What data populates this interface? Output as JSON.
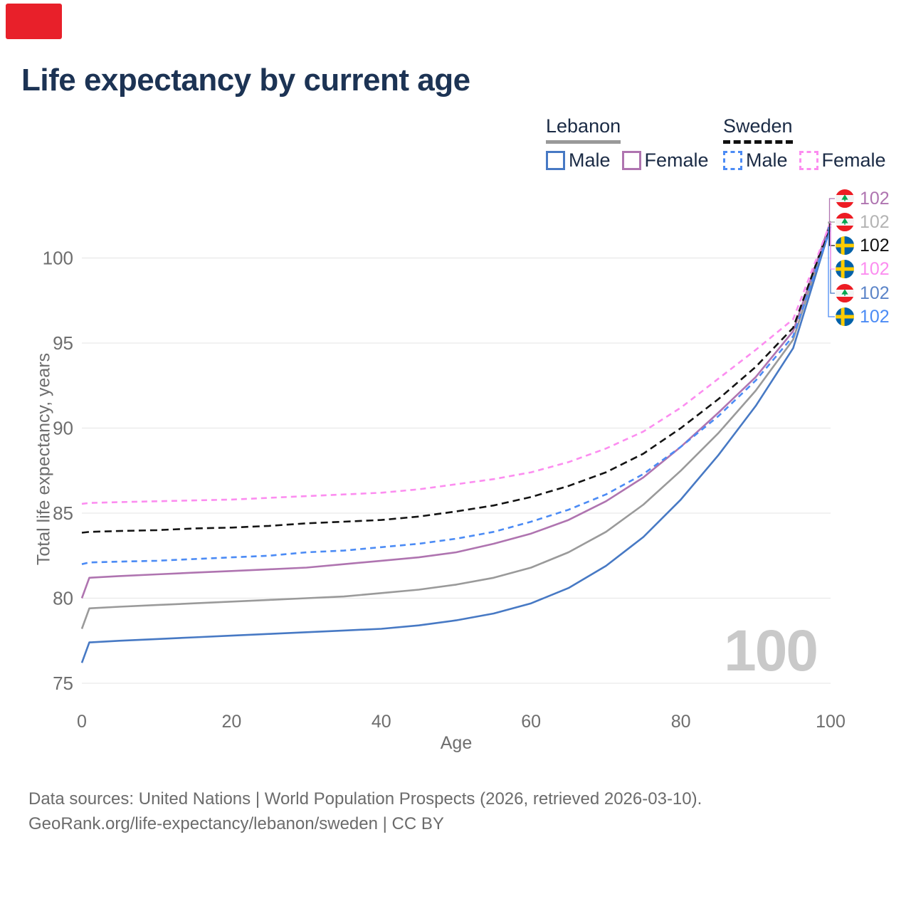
{
  "title": "Life expectancy by current age",
  "age_indicator": "100",
  "footer": {
    "line1": "Data sources: United Nations | World Population Prospects (2026, retrieved 2026-03-10).",
    "line2": "GeoRank.org/life-expectancy/lebanon/sweden | CC BY"
  },
  "colors": {
    "corner_marker": "#e8202a",
    "title_navy": "#1c3354",
    "grid": "#e9e9e9",
    "tick_gray": "#6e6e6e",
    "watermark_gray": "#c9c9c9"
  },
  "legend": {
    "groups": [
      {
        "country": "Lebanon",
        "line_style": "solid",
        "underline_color": "#999999",
        "items": [
          {
            "label": "Male",
            "color": "#4779c4"
          },
          {
            "label": "Female",
            "color": "#af74b0"
          }
        ]
      },
      {
        "country": "Sweden",
        "line_style": "dashed",
        "underline_color": "#111111",
        "items": [
          {
            "label": "Male",
            "color": "#4b8bf5"
          },
          {
            "label": "Female",
            "color": "#fc8df0"
          }
        ]
      }
    ]
  },
  "end_labels": [
    {
      "country": "Lebanon",
      "value": "102",
      "color": "#af74b0"
    },
    {
      "country": "Lebanon",
      "value": "102",
      "color": "#b3b3b3"
    },
    {
      "country": "Sweden",
      "value": "102",
      "color": "#111111"
    },
    {
      "country": "Sweden",
      "value": "102",
      "color": "#fc8df0"
    },
    {
      "country": "Lebanon",
      "value": "102",
      "color": "#5b84c8"
    },
    {
      "country": "Sweden",
      "value": "102",
      "color": "#4b8bf5"
    }
  ],
  "chart_data": {
    "type": "line",
    "title": "Life expectancy by current age",
    "xlabel": "Age",
    "ylabel": "Total life expectancy, years",
    "xlim": [
      0,
      100
    ],
    "ylim": [
      75,
      102.5
    ],
    "x_ticks": [
      0,
      20,
      40,
      60,
      80,
      100
    ],
    "y_ticks": [
      75,
      80,
      85,
      90,
      95,
      100
    ],
    "grid": "horizontal",
    "legend_position": "top-right",
    "x": [
      0,
      1,
      5,
      10,
      15,
      20,
      25,
      30,
      35,
      40,
      45,
      50,
      55,
      60,
      65,
      70,
      75,
      80,
      85,
      90,
      95,
      100
    ],
    "series": [
      {
        "name": "Lebanon Both sexes",
        "country": "Lebanon",
        "sex": "Both",
        "style": "solid",
        "color": "#9a9a9a",
        "dash": null,
        "label_row": 1,
        "end_label": "102",
        "values": [
          78.2,
          79.4,
          79.5,
          79.6,
          79.7,
          79.8,
          79.9,
          80.0,
          80.1,
          80.3,
          80.5,
          80.8,
          81.2,
          81.8,
          82.7,
          83.9,
          85.5,
          87.5,
          89.7,
          92.2,
          95.2,
          102.05
        ]
      },
      {
        "name": "Lebanon Female",
        "country": "Lebanon",
        "sex": "Female",
        "style": "solid",
        "color": "#af74b0",
        "dash": null,
        "label_row": 0,
        "end_label": "102",
        "values": [
          80.0,
          81.2,
          81.3,
          81.4,
          81.5,
          81.6,
          81.7,
          81.8,
          82.0,
          82.2,
          82.4,
          82.7,
          83.2,
          83.8,
          84.6,
          85.7,
          87.1,
          88.9,
          90.9,
          93.0,
          95.7,
          102.15
        ]
      },
      {
        "name": "Lebanon Male",
        "country": "Lebanon",
        "sex": "Male",
        "style": "solid",
        "color": "#4779c4",
        "dash": null,
        "label_row": 4,
        "end_label": "102",
        "values": [
          76.2,
          77.4,
          77.5,
          77.6,
          77.7,
          77.8,
          77.9,
          78.0,
          78.1,
          78.2,
          78.4,
          78.7,
          79.1,
          79.7,
          80.6,
          81.9,
          83.6,
          85.8,
          88.4,
          91.3,
          94.7,
          101.85
        ]
      },
      {
        "name": "Sweden Male",
        "country": "Sweden",
        "sex": "Male",
        "style": "dashed",
        "color": "#4b8bf5",
        "dash": "8 6",
        "label_row": 5,
        "end_label": "102",
        "values": [
          82.0,
          82.1,
          82.15,
          82.2,
          82.3,
          82.4,
          82.5,
          82.7,
          82.8,
          83.0,
          83.2,
          83.5,
          83.9,
          84.5,
          85.2,
          86.1,
          87.3,
          88.9,
          90.7,
          92.8,
          95.4,
          101.8
        ]
      },
      {
        "name": "Sweden Both sexes",
        "country": "Sweden",
        "sex": "Both",
        "style": "dashed",
        "color": "#141414",
        "dash": "10 6",
        "label_row": 2,
        "end_label": "102",
        "values": [
          83.85,
          83.9,
          83.95,
          84.0,
          84.1,
          84.15,
          84.25,
          84.4,
          84.5,
          84.6,
          84.8,
          85.1,
          85.45,
          85.95,
          86.6,
          87.4,
          88.5,
          90.0,
          91.7,
          93.6,
          95.9,
          102.0
        ]
      },
      {
        "name": "Sweden Female",
        "country": "Sweden",
        "sex": "Female",
        "style": "dashed",
        "color": "#fc8df0",
        "dash": "8 6",
        "label_row": 3,
        "end_label": "102",
        "values": [
          85.55,
          85.6,
          85.65,
          85.7,
          85.75,
          85.8,
          85.9,
          86.0,
          86.1,
          86.2,
          86.4,
          86.7,
          87.0,
          87.4,
          88.0,
          88.8,
          89.8,
          91.2,
          92.9,
          94.6,
          96.4,
          102.1
        ]
      }
    ]
  }
}
